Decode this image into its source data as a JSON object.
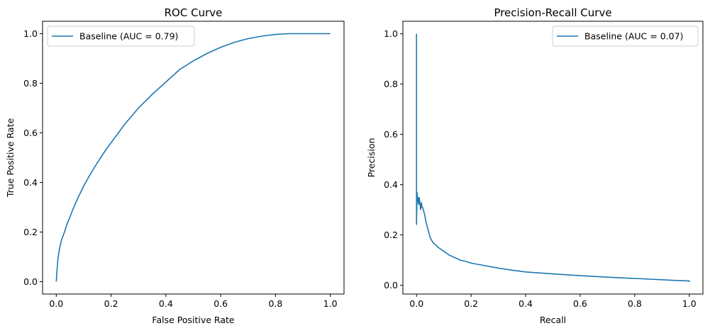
{
  "chart_data": [
    {
      "type": "line",
      "title": "ROC Curve",
      "xlabel": "False Positive Rate",
      "ylabel": "True Positive Rate",
      "xlim": [
        -0.05,
        1.05
      ],
      "ylim": [
        -0.05,
        1.05
      ],
      "xticks": [
        0.0,
        0.2,
        0.4,
        0.6,
        0.8,
        1.0
      ],
      "yticks": [
        0.0,
        0.2,
        0.4,
        0.6,
        0.8,
        1.0
      ],
      "xtick_labels": [
        "0.0",
        "0.2",
        "0.4",
        "0.6",
        "0.8",
        "1.0"
      ],
      "ytick_labels": [
        "0.0",
        "0.2",
        "0.4",
        "0.6",
        "0.8",
        "1.0"
      ],
      "grid": false,
      "legend": "top-left",
      "series": [
        {
          "name": "Baseline (AUC = 0.79)",
          "color": "#1f77b4",
          "x": [
            0.0,
            0.003,
            0.006,
            0.01,
            0.015,
            0.02,
            0.03,
            0.04,
            0.05,
            0.06,
            0.07,
            0.08,
            0.1,
            0.12,
            0.15,
            0.18,
            0.2,
            0.25,
            0.3,
            0.35,
            0.4,
            0.45,
            0.5,
            0.55,
            0.6,
            0.65,
            0.7,
            0.75,
            0.8,
            0.85,
            0.9,
            0.95,
            1.0
          ],
          "y": [
            0.0,
            0.05,
            0.09,
            0.12,
            0.15,
            0.17,
            0.2,
            0.235,
            0.26,
            0.29,
            0.315,
            0.34,
            0.385,
            0.425,
            0.48,
            0.53,
            0.56,
            0.635,
            0.7,
            0.755,
            0.805,
            0.855,
            0.89,
            0.92,
            0.945,
            0.965,
            0.98,
            0.99,
            0.997,
            1.0,
            1.0,
            1.0,
            1.0
          ]
        }
      ]
    },
    {
      "type": "line",
      "title": "Precision-Recall Curve",
      "xlabel": "Recall",
      "ylabel": "Precision",
      "xlim": [
        -0.05,
        1.05
      ],
      "ylim": [
        -0.035,
        1.05
      ],
      "xticks": [
        0.0,
        0.2,
        0.4,
        0.6,
        0.8,
        1.0
      ],
      "yticks": [
        0.0,
        0.2,
        0.4,
        0.6,
        0.8,
        1.0
      ],
      "xtick_labels": [
        "0.0",
        "0.2",
        "0.4",
        "0.6",
        "0.8",
        "1.0"
      ],
      "ytick_labels": [
        "0.0",
        "0.2",
        "0.4",
        "0.6",
        "0.8",
        "1.0"
      ],
      "grid": false,
      "legend": "top-right",
      "series": [
        {
          "name": "Baseline (AUC = 0.07)",
          "color": "#1f77b4",
          "x": [
            0.0,
            0.0,
            0.002,
            0.004,
            0.006,
            0.008,
            0.01,
            0.012,
            0.015,
            0.018,
            0.02,
            0.022,
            0.025,
            0.03,
            0.035,
            0.04,
            0.05,
            0.06,
            0.08,
            0.1,
            0.12,
            0.14,
            0.16,
            0.18,
            0.2,
            0.25,
            0.3,
            0.35,
            0.4,
            0.5,
            0.6,
            0.7,
            0.8,
            0.9,
            0.95,
            1.0,
            1.0
          ],
          "y": [
            1.0,
            0.24,
            0.37,
            0.33,
            0.35,
            0.32,
            0.35,
            0.33,
            0.3,
            0.33,
            0.31,
            0.31,
            0.3,
            0.28,
            0.25,
            0.23,
            0.19,
            0.17,
            0.15,
            0.135,
            0.12,
            0.11,
            0.1,
            0.095,
            0.088,
            0.078,
            0.068,
            0.06,
            0.053,
            0.045,
            0.038,
            0.032,
            0.027,
            0.022,
            0.019,
            0.017,
            0.013
          ]
        }
      ]
    }
  ]
}
